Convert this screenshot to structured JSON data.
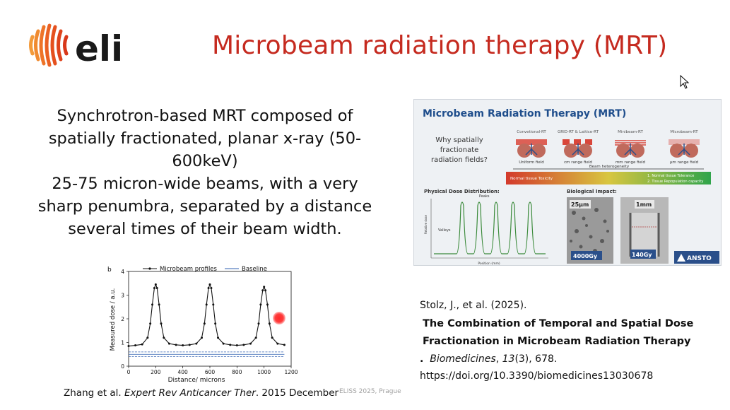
{
  "logo": {
    "text": "eli"
  },
  "title": "Microbeam radiation therapy (MRT)",
  "body_lines": [
    "Synchrotron-based MRT composed of",
    "spatially fractionated, planar x-ray (50-",
    "600keV)",
    "25-75 micron-wide beams, with a very",
    "sharp penumbra, separated by a distance",
    "several times of their beam width."
  ],
  "panel": {
    "title": "Microbeam Radiation Therapy (MRT)",
    "question": [
      "Why spatially",
      "fractionate",
      "radiation fields?"
    ],
    "columns": [
      {
        "head": "Convetional-RT",
        "sub": "Uniform field"
      },
      {
        "head": "GRID-RT & Lattice-RT",
        "sub": "cm range field"
      },
      {
        "head": "Minibeam-RT",
        "sub": "mm range field"
      },
      {
        "head": "Microbeam-RT",
        "sub": "µm range field"
      }
    ],
    "heterogeneity_label": "Beam heterogeneity",
    "toxicity_label": "Normal tissue Toxicity",
    "tolerance_1": "1. Normal tissue Tolerance",
    "tolerance_2": "2. Tissue Repopulation capacity",
    "dose_dist_label": "Physical Dose Distribution:",
    "peaks_label": "Peaks",
    "valleys_label": "Valleys",
    "bio_label": "Biological Impact:",
    "micro_1_size": "25µm",
    "micro_1_dose": "4000Gy",
    "micro_2_size": "1mm",
    "micro_2_dose": "140Gy",
    "brand": "ANSTO",
    "position_label": "Position (mm)",
    "relative_dose_label": "Relative dose"
  },
  "chart_data": {
    "type": "line",
    "panel_letter": "b",
    "xlabel": "Distance/ microns",
    "ylabel": "Measured dose / a.u.",
    "xlim": [
      0,
      1200
    ],
    "ylim": [
      0,
      4
    ],
    "xticks": [
      0,
      200,
      400,
      600,
      800,
      1000,
      1200
    ],
    "yticks": [
      0,
      1,
      2,
      3,
      4
    ],
    "legend_placement": "top",
    "series": [
      {
        "name": "Microbeam profiles",
        "color": "#111111",
        "x": [
          0,
          50,
          100,
          140,
          160,
          175,
          190,
          200,
          210,
          225,
          240,
          260,
          300,
          350,
          400,
          450,
          500,
          540,
          560,
          575,
          590,
          600,
          610,
          625,
          640,
          660,
          700,
          750,
          800,
          850,
          900,
          940,
          960,
          975,
          990,
          1000,
          1010,
          1025,
          1040,
          1060,
          1100,
          1150
        ],
        "y": [
          0.85,
          0.88,
          0.92,
          1.2,
          1.8,
          2.6,
          3.3,
          3.45,
          3.3,
          2.6,
          1.8,
          1.2,
          0.95,
          0.9,
          0.88,
          0.9,
          0.95,
          1.2,
          1.8,
          2.6,
          3.3,
          3.45,
          3.3,
          2.6,
          1.8,
          1.2,
          0.95,
          0.9,
          0.88,
          0.9,
          0.95,
          1.2,
          1.8,
          2.6,
          3.2,
          3.35,
          3.2,
          2.6,
          1.8,
          1.2,
          0.95,
          0.9
        ]
      },
      {
        "name": "Baseline",
        "color": "#2f5fb0",
        "x": [
          0,
          1150
        ],
        "y": [
          0.5,
          0.5
        ]
      }
    ]
  },
  "zhang_citation": {
    "authors": "Zhang et al.",
    "journal": "Expert Rev Anticancer Ther",
    "date": ". 2015 December"
  },
  "footer": "ELISS 2025, Prague",
  "reference": {
    "authors": "Stolz, J., et al. (2025).",
    "title_line1": "The Combination of Temporal and Spatial Dose",
    "title_line2": "Fractionation in Microbeam Radiation Therapy",
    "period": ".",
    "journal": "Biomedicines",
    "volume": "13",
    "issue_pages": "(3), 678.",
    "doi": "https://doi.org/10.3390/biomedicines13030678"
  },
  "colors": {
    "title_red": "#c52a1f",
    "logo_orange": "#e8501f",
    "panel_title_blue": "#1f4e8c"
  }
}
